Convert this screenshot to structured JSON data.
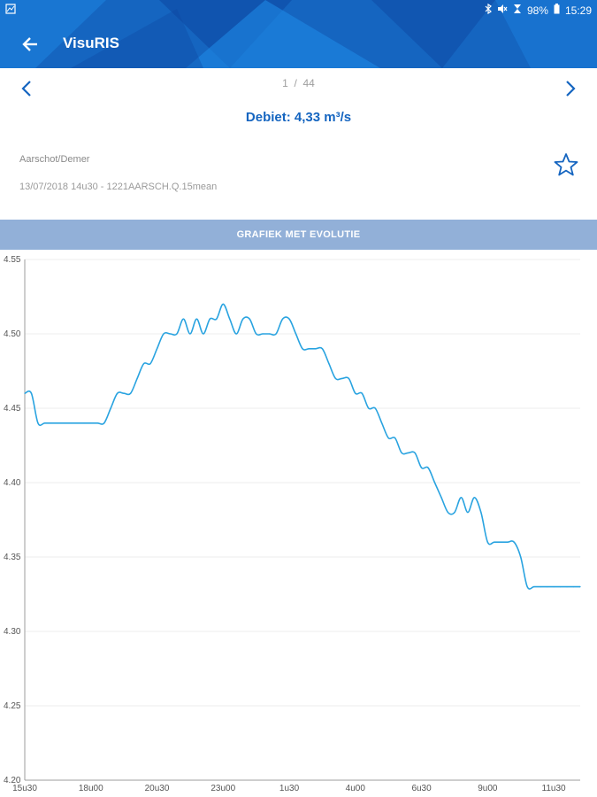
{
  "status_bar": {
    "battery": "98%",
    "time": "15:29"
  },
  "toolbar": {
    "title": "VisuRIS"
  },
  "pager": {
    "current": "1",
    "separator": "/",
    "total": "44"
  },
  "headline": "Debiet: 4,33 m³/s",
  "station": "Aarschot/Demer",
  "meta": "13/07/2018 14u30 - 1221AARSCH.Q.15mean",
  "graph_button": "GRAFIEK MET EVOLUTIE",
  "colors": {
    "appbar": "#1565c0",
    "line": "#29a3e0",
    "button": "#92b0d8",
    "accent": "#1565c0"
  },
  "chart_data": {
    "type": "line",
    "title": "",
    "xlabel": "",
    "ylabel": "",
    "ylim": [
      4.2,
      4.55
    ],
    "y_ticks": [
      "4.20",
      "4.25",
      "4.30",
      "4.35",
      "4.40",
      "4.45",
      "4.50",
      "4.55"
    ],
    "x_ticks": [
      "15u30",
      "18u00",
      "20u30",
      "23u00",
      "1u30",
      "4u00",
      "6u30",
      "9u00",
      "11u30"
    ],
    "x_tick_hours": [
      0,
      2.5,
      5,
      7.5,
      10,
      12.5,
      15,
      17.5,
      20
    ],
    "grid": true,
    "series": [
      {
        "x": [
          0,
          0.25,
          0.5,
          0.75,
          1,
          1.25,
          1.5,
          1.75,
          2,
          2.25,
          2.5,
          2.75,
          3,
          3.25,
          3.5,
          3.75,
          4,
          4.25,
          4.5,
          4.75,
          5,
          5.25,
          5.5,
          5.75,
          6,
          6.25,
          6.5,
          6.75,
          7,
          7.25,
          7.5,
          7.75,
          8,
          8.25,
          8.5,
          8.75,
          9,
          9.25,
          9.5,
          9.75,
          10,
          10.25,
          10.5,
          10.75,
          11,
          11.25,
          11.5,
          11.75,
          12,
          12.25,
          12.5,
          12.75,
          13,
          13.25,
          13.5,
          13.75,
          14,
          14.25,
          14.5,
          14.75,
          15,
          15.25,
          15.5,
          15.75,
          16,
          16.25,
          16.5,
          16.75,
          17,
          17.25,
          17.5,
          17.75,
          18,
          18.25,
          18.5,
          18.75,
          19,
          19.25,
          19.5,
          19.75,
          20,
          20.25,
          20.5,
          20.75,
          21
        ],
        "values": [
          4.46,
          4.46,
          4.44,
          4.44,
          4.44,
          4.44,
          4.44,
          4.44,
          4.44,
          4.44,
          4.44,
          4.44,
          4.44,
          4.45,
          4.46,
          4.46,
          4.46,
          4.47,
          4.48,
          4.48,
          4.49,
          4.5,
          4.5,
          4.5,
          4.51,
          4.5,
          4.51,
          4.5,
          4.51,
          4.51,
          4.52,
          4.51,
          4.5,
          4.51,
          4.51,
          4.5,
          4.5,
          4.5,
          4.5,
          4.51,
          4.51,
          4.5,
          4.49,
          4.49,
          4.49,
          4.49,
          4.48,
          4.47,
          4.47,
          4.47,
          4.46,
          4.46,
          4.45,
          4.45,
          4.44,
          4.43,
          4.43,
          4.42,
          4.42,
          4.42,
          4.41,
          4.41,
          4.4,
          4.39,
          4.38,
          4.38,
          4.39,
          4.38,
          4.39,
          4.38,
          4.36,
          4.36,
          4.36,
          4.36,
          4.36,
          4.35,
          4.33,
          4.33,
          4.33,
          4.33,
          4.33,
          4.33,
          4.33,
          4.33,
          4.33
        ]
      }
    ]
  }
}
